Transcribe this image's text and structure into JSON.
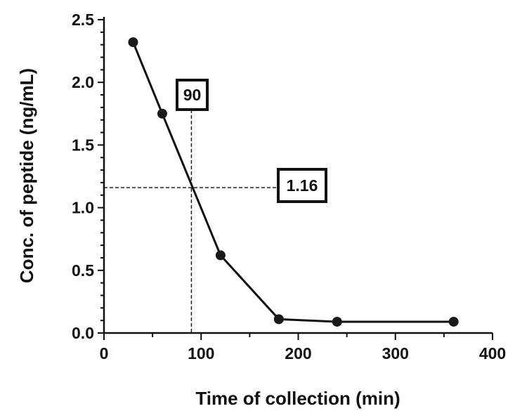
{
  "chart_data": {
    "type": "line",
    "title": "",
    "xlabel": "Time of collection (min)",
    "ylabel": "Conc. of peptide (ng/mL)",
    "xlim": [
      0,
      400
    ],
    "ylim": [
      0,
      2.5
    ],
    "xticks": [
      "0",
      "100",
      "200",
      "300",
      "400"
    ],
    "yticks": [
      "0.0",
      "0.5",
      "1.0",
      "1.5",
      "2.0",
      "2.5"
    ],
    "grid": false,
    "series": [
      {
        "x": [
          30,
          60,
          120,
          180,
          240,
          360
        ],
        "y": [
          2.32,
          1.75,
          0.62,
          0.11,
          0.09,
          0.09
        ]
      }
    ],
    "annotations": {
      "x_marker": {
        "label": "90",
        "value": 90
      },
      "y_marker": {
        "label": "1.16",
        "value": 1.16
      }
    },
    "colors": {
      "line": "#111111",
      "marker": "#1a1a1a",
      "guide": "#111111"
    }
  }
}
